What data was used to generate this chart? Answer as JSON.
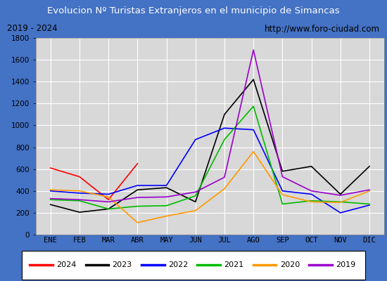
{
  "title": "Evolucion Nº Turistas Extranjeros en el municipio de Simancas",
  "subtitle_left": "2019 - 2024",
  "subtitle_right": "http://www.foro-ciudad.com",
  "title_bg_color": "#4472c4",
  "title_text_color": "#ffffff",
  "subtitle_bg_color": "#e8e8e8",
  "subtitle_text_color": "#000000",
  "plot_bg_color": "#d8d8d8",
  "months": [
    "ENE",
    "FEB",
    "MAR",
    "ABR",
    "MAY",
    "JUN",
    "JUL",
    "AGO",
    "SEP",
    "OCT",
    "NOV",
    "DIC"
  ],
  "series": {
    "2024": {
      "color": "#ff0000",
      "data": [
        610,
        530,
        320,
        650,
        null,
        null,
        null,
        null,
        null,
        null,
        null,
        null
      ]
    },
    "2023": {
      "color": "#000000",
      "data": [
        275,
        205,
        235,
        410,
        430,
        300,
        1100,
        1420,
        580,
        625,
        370,
        625
      ]
    },
    "2022": {
      "color": "#0000ff",
      "data": [
        400,
        380,
        370,
        450,
        450,
        870,
        975,
        960,
        400,
        370,
        200,
        270
      ]
    },
    "2021": {
      "color": "#00bb00",
      "data": [
        320,
        310,
        235,
        260,
        265,
        355,
        870,
        1175,
        280,
        310,
        300,
        280
      ]
    },
    "2020": {
      "color": "#ff9900",
      "data": [
        410,
        400,
        345,
        110,
        170,
        220,
        420,
        760,
        365,
        300,
        295,
        400
      ]
    },
    "2019": {
      "color": "#9900cc",
      "data": [
        330,
        320,
        300,
        340,
        345,
        390,
        525,
        1690,
        530,
        400,
        360,
        410
      ]
    }
  },
  "ylim": [
    0,
    1800
  ],
  "yticks": [
    0,
    200,
    400,
    600,
    800,
    1000,
    1200,
    1400,
    1600,
    1800
  ],
  "legend_order": [
    "2024",
    "2023",
    "2022",
    "2021",
    "2020",
    "2019"
  ],
  "outer_border_color": "#4472c4",
  "grid_color": "#ffffff",
  "border_color": "#000000"
}
